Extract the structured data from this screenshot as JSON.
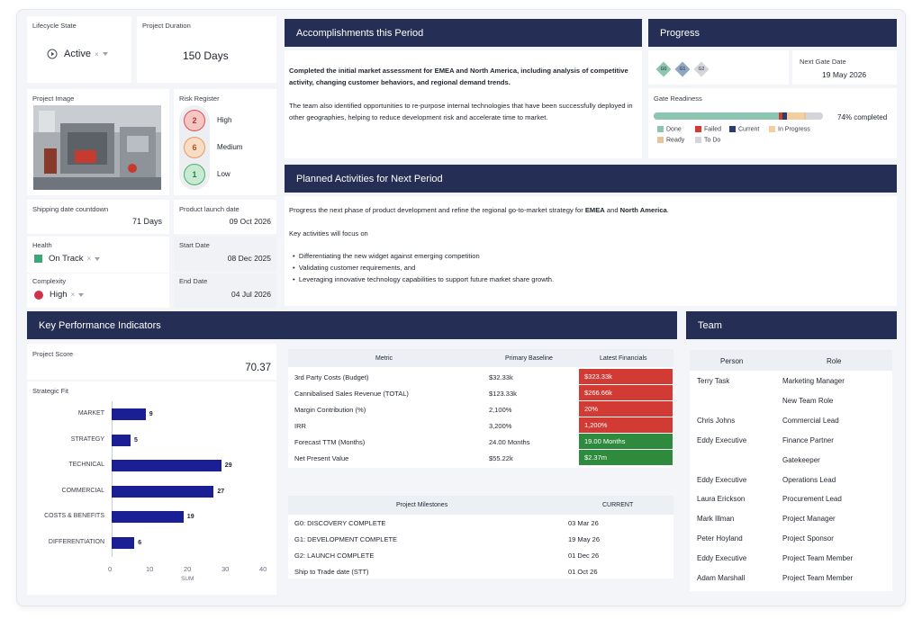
{
  "lifecycle": {
    "label": "Lifecycle State",
    "value": "Active",
    "clear": "×"
  },
  "duration": {
    "label": "Project Duration",
    "value": "150 Days"
  },
  "image": {
    "label": "Project Image"
  },
  "risk": {
    "label": "Risk Register",
    "items": [
      {
        "count": "2",
        "level": "High",
        "color": "#d9534f",
        "bg": "#f5c6c3"
      },
      {
        "count": "6",
        "level": "Medium",
        "color": "#e89a62",
        "bg": "#f8dcc4"
      },
      {
        "count": "1",
        "level": "Low",
        "color": "#4cae6a",
        "bg": "#c6ebd0"
      }
    ]
  },
  "shipping": {
    "label": "Shipping date countdown",
    "value": "71 Days"
  },
  "launch": {
    "label": "Product launch date",
    "value": "09 Oct 2026"
  },
  "health": {
    "label": "Health",
    "value": "On Track",
    "color": "#3fa67a",
    "clear": "×"
  },
  "start": {
    "label": "Start Date",
    "value": "08 Dec 2025"
  },
  "complexity": {
    "label": "Complexity",
    "value": "High",
    "color": "#d0314c",
    "clear": "×"
  },
  "end": {
    "label": "End Date",
    "value": "04 Jul 2026"
  },
  "accomplishments": {
    "title": "Accomplishments this Period",
    "bold": "Completed the initial market assessment for EMEA and North America, including analysis of competitive activity, changing customer behaviors, and regional demand trends.",
    "body": "The team also identified opportunities to re-purpose internal technologies that have been successfully deployed in other geographies, helping to reduce development risk and accelerate time to market."
  },
  "progress": {
    "title": "Progress",
    "gates": [
      "G0",
      "G1",
      "G2"
    ],
    "next_gate_label": "Next Gate Date",
    "next_gate_value": "19 May 2026",
    "readiness_label": "Gate Readiness",
    "completed": "74% completed",
    "segments": [
      {
        "name": "Done",
        "fraction": 0.74,
        "color": "#8cc5b0"
      },
      {
        "name": "Failed",
        "fraction": 0.02,
        "color": "#d23b34"
      },
      {
        "name": "Current",
        "fraction": 0.03,
        "color": "#2a3d6e"
      },
      {
        "name": "In Progress",
        "fraction": 0.1,
        "color": "#f3cfa0"
      },
      {
        "name": "Ready",
        "fraction": 0.01,
        "color": "#e9c39a"
      },
      {
        "name": "To Do",
        "fraction": 0.1,
        "color": "#d3d5da"
      }
    ],
    "legend": [
      {
        "name": "Done",
        "color": "#8cc5b0"
      },
      {
        "name": "Failed",
        "color": "#d23b34"
      },
      {
        "name": "Current",
        "color": "#2a3d6e"
      },
      {
        "name": "In Progress",
        "color": "#f3cfa0"
      },
      {
        "name": "Ready",
        "color": "#e9c39a"
      },
      {
        "name": "To Do",
        "color": "#d3d5da"
      }
    ]
  },
  "planned": {
    "title": "Planned Activities for Next Period",
    "intro_pre": "Progress the next phase of product development and refine the regional go-to-market strategy for ",
    "intro_emea": "EMEA",
    "intro_and": " and ",
    "intro_na": "North America",
    "intro_end": ".",
    "focus": "Key activities will focus on",
    "bullets": [
      "Differentiating the new widget against emerging competition",
      "Validating customer requirements, and",
      "Leveraging innovative technology capabilities to support future market share growth."
    ]
  },
  "kpi": {
    "title": "Key Performance Indicators",
    "score_label": "Project Score",
    "score_value": "70.37",
    "fit_label": "Strategic Fit"
  },
  "chart_data": {
    "type": "bar",
    "orientation": "horizontal",
    "categories": [
      "MARKET",
      "STRATEGY",
      "TECHNICAL",
      "COMMERCIAL",
      "COSTS & BENEFITS",
      "DIFFERENTIATION"
    ],
    "values": [
      9,
      5,
      29,
      27,
      19,
      6
    ],
    "xlabel": "SUM",
    "xlim": [
      0,
      40
    ],
    "xticks": [
      "0",
      "10",
      "20",
      "30",
      "40"
    ],
    "color": "#1b1f94"
  },
  "metrics": {
    "headers": [
      "Metric",
      "Primary Baseline",
      "Latest Financials"
    ],
    "rows": [
      {
        "metric": "3rd Party Costs (Budget)",
        "baseline": "$32.33k",
        "latest": "$323.33k",
        "status": "red"
      },
      {
        "metric": "Cannibalised Sales Revenue (TOTAL)",
        "baseline": "$123.33k",
        "latest": "$266.66k",
        "status": "red"
      },
      {
        "metric": "Margin Contribution (%)",
        "baseline": "2,100%",
        "latest": "20%",
        "status": "red"
      },
      {
        "metric": "IRR",
        "baseline": "3,200%",
        "latest": "1,200%",
        "status": "red"
      },
      {
        "metric": "Forecast TTM (Months)",
        "baseline": "24.00 Months",
        "latest": "19.00 Months",
        "status": "green"
      },
      {
        "metric": "Net Present Value",
        "baseline": "$55.22k",
        "latest": "$2.37m",
        "status": "green"
      }
    ]
  },
  "milestones": {
    "headers": [
      "Project Milestones",
      "CURRENT"
    ],
    "rows": [
      {
        "name": "G0: DISCOVERY COMPLETE",
        "date": "03 Mar 26"
      },
      {
        "name": "G1: DEVELOPMENT COMPLETE",
        "date": "19 May 26"
      },
      {
        "name": "G2: LAUNCH COMPLETE",
        "date": "01 Dec 26"
      },
      {
        "name": "Ship to Trade date (STT)",
        "date": "01 Oct 26"
      }
    ]
  },
  "team": {
    "title": "Team",
    "headers": [
      "Person",
      "Role"
    ],
    "rows": [
      {
        "person": "Terry Task",
        "role": "Marketing Manager"
      },
      {
        "person": "",
        "role": "New Team Role"
      },
      {
        "person": "Chris Johns",
        "role": "Commercial Lead"
      },
      {
        "person": "Eddy Executive",
        "role": "Finance Partner"
      },
      {
        "person": "",
        "role": "Gatekeeper"
      },
      {
        "person": "Eddy Executive",
        "role": "Operations Lead"
      },
      {
        "person": "Laura Erickson",
        "role": "Procurement Lead"
      },
      {
        "person": "Mark Illman",
        "role": "Project Manager"
      },
      {
        "person": "Peter Hoyland",
        "role": "Project Sponsor"
      },
      {
        "person": "Eddy Executive",
        "role": "Project Team Member"
      },
      {
        "person": "Adam Marshall",
        "role": "Project Team Member"
      }
    ]
  }
}
